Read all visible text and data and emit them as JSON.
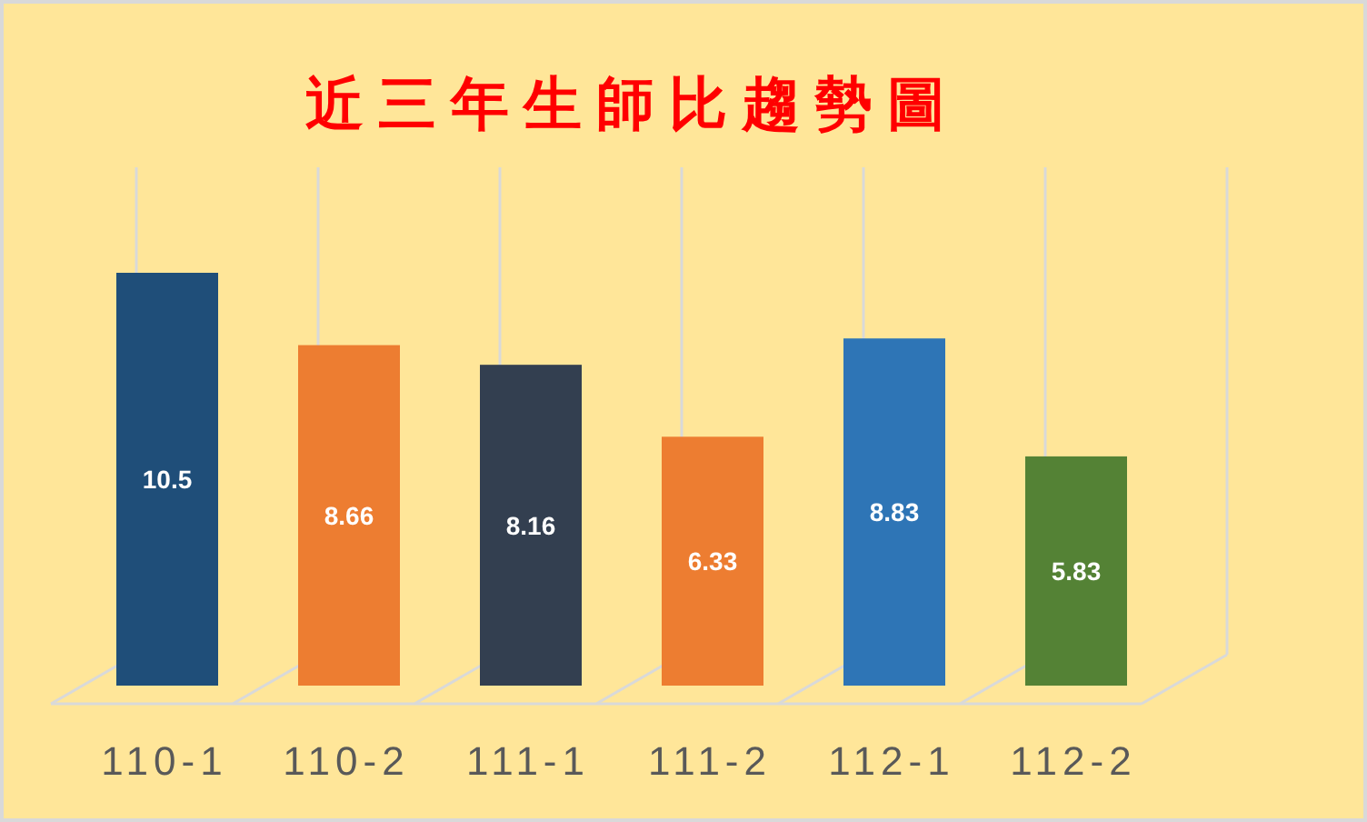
{
  "chart_data": {
    "type": "bar",
    "title": "近三年生師比趨勢圖",
    "categories": [
      "110-1",
      "110-2",
      "111-1",
      "111-2",
      "112-1",
      "112-2"
    ],
    "values": [
      10.5,
      8.66,
      8.16,
      6.33,
      8.83,
      5.83
    ],
    "colors": [
      "#1f4e79",
      "#ed7d31",
      "#333f50",
      "#ed7d31",
      "#2e75b6",
      "#548235"
    ],
    "data_labels": true,
    "grid": "x"
  }
}
